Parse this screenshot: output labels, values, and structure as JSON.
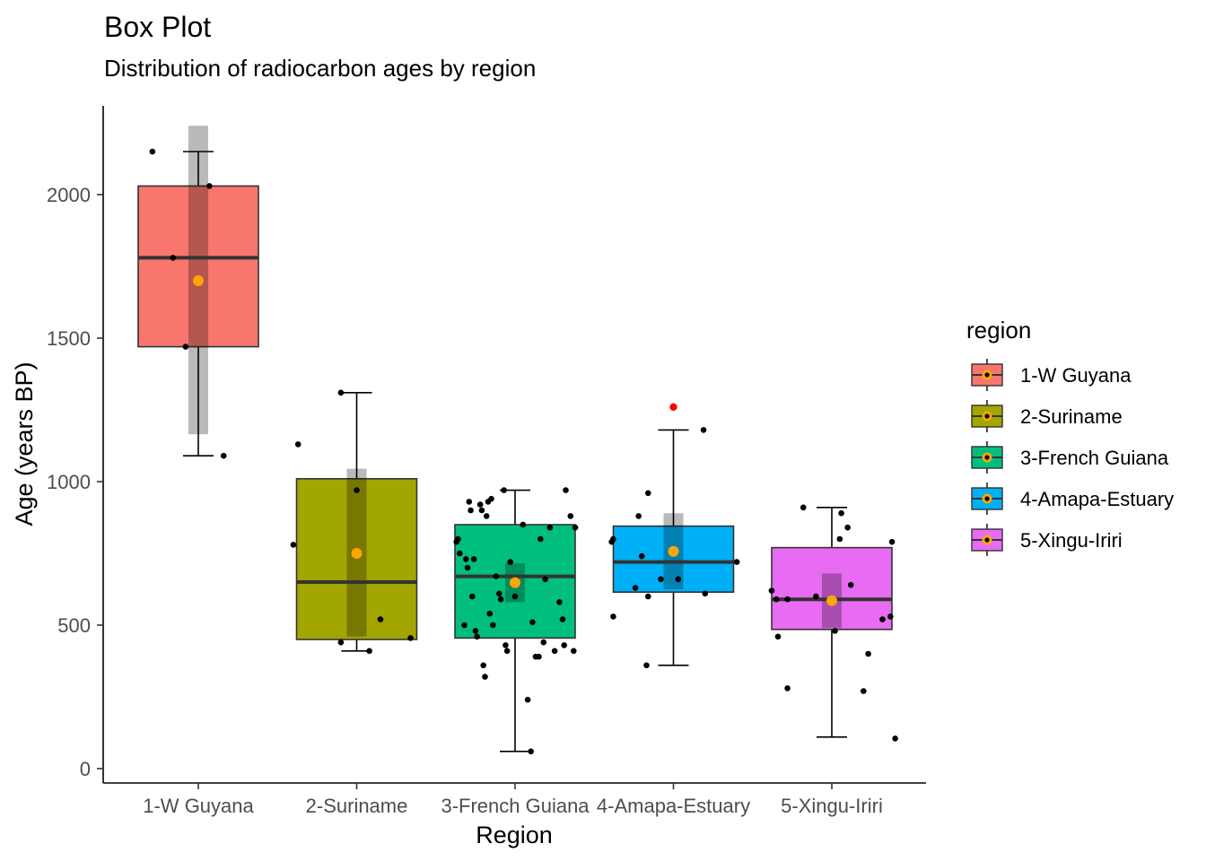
{
  "chart_data": {
    "type": "box",
    "title": "Box Plot",
    "subtitle": "Distribution of radiocarbon ages by region",
    "xlabel": "Region",
    "ylabel": "Age (years BP)",
    "ylim": [
      -50,
      2330
    ],
    "yticks": [
      0,
      500,
      1000,
      1500,
      2000
    ],
    "grid": false,
    "legend": {
      "title": "region",
      "placement": "right"
    },
    "categories": [
      "1-W Guyana",
      "2-Suriname",
      "3-French Guiana",
      "4-Amapa-Estuary",
      "5-Xingu-Iriri"
    ],
    "colors": [
      "#F8766D",
      "#A3A500",
      "#00BF7D",
      "#00B0F6",
      "#E76BF3"
    ],
    "mean_color": "#FFA500",
    "outlier_color": "#FF0000",
    "boxes": [
      {
        "name": "1-W Guyana",
        "whisker_low": 1090,
        "q1": 1470,
        "median": 1780,
        "q3": 2030,
        "whisker_high": 2150,
        "mean": 1700,
        "ci_low": 1165,
        "ci_high": 2240,
        "outliers": []
      },
      {
        "name": "2-Suriname",
        "whisker_low": 410,
        "q1": 450,
        "median": 650,
        "q3": 1010,
        "whisker_high": 1310,
        "mean": 750,
        "ci_low": 460,
        "ci_high": 1045,
        "outliers": []
      },
      {
        "name": "3-French Guiana",
        "whisker_low": 60,
        "q1": 455,
        "median": 670,
        "q3": 850,
        "whisker_high": 970,
        "mean": 648,
        "ci_low": 580,
        "ci_high": 715,
        "outliers": []
      },
      {
        "name": "4-Amapa-Estuary",
        "whisker_low": 360,
        "q1": 615,
        "median": 720,
        "q3": 845,
        "whisker_high": 1180,
        "mean": 757,
        "ci_low": 625,
        "ci_high": 890,
        "outliers": [
          1260
        ]
      },
      {
        "name": "5-Xingu-Iriri",
        "whisker_low": 110,
        "q1": 485,
        "median": 590,
        "q3": 770,
        "whisker_high": 910,
        "mean": 585,
        "ci_low": 490,
        "ci_high": 680,
        "outliers": []
      }
    ],
    "points": [
      {
        "region": "1-W Guyana",
        "jitter": -0.29,
        "y": 2150
      },
      {
        "region": "1-W Guyana",
        "jitter": -0.16,
        "y": 1780
      },
      {
        "region": "1-W Guyana",
        "jitter": -0.08,
        "y": 1470
      },
      {
        "region": "1-W Guyana",
        "jitter": 0.07,
        "y": 2030
      },
      {
        "region": "1-W Guyana",
        "jitter": 0.16,
        "y": 1090
      },
      {
        "region": "2-Suriname",
        "jitter": -0.37,
        "y": 1130
      },
      {
        "region": "2-Suriname",
        "jitter": -0.4,
        "y": 780
      },
      {
        "region": "2-Suriname",
        "jitter": -0.1,
        "y": 440
      },
      {
        "region": "2-Suriname",
        "jitter": -0.1,
        "y": 1310
      },
      {
        "region": "2-Suriname",
        "jitter": 0.0,
        "y": 970
      },
      {
        "region": "2-Suriname",
        "jitter": 0.08,
        "y": 410
      },
      {
        "region": "2-Suriname",
        "jitter": 0.15,
        "y": 520
      },
      {
        "region": "2-Suriname",
        "jitter": 0.34,
        "y": 455
      },
      {
        "region": "3-French Guiana",
        "jitter": -0.37,
        "y": 790
      },
      {
        "region": "3-French Guiana",
        "jitter": -0.36,
        "y": 800
      },
      {
        "region": "3-French Guiana",
        "jitter": -0.35,
        "y": 750
      },
      {
        "region": "3-French Guiana",
        "jitter": -0.32,
        "y": 500
      },
      {
        "region": "3-French Guiana",
        "jitter": -0.31,
        "y": 730
      },
      {
        "region": "3-French Guiana",
        "jitter": -0.3,
        "y": 700
      },
      {
        "region": "3-French Guiana",
        "jitter": -0.29,
        "y": 930
      },
      {
        "region": "3-French Guiana",
        "jitter": -0.28,
        "y": 900
      },
      {
        "region": "3-French Guiana",
        "jitter": -0.27,
        "y": 600
      },
      {
        "region": "3-French Guiana",
        "jitter": -0.26,
        "y": 730
      },
      {
        "region": "3-French Guiana",
        "jitter": -0.25,
        "y": 480
      },
      {
        "region": "3-French Guiana",
        "jitter": -0.24,
        "y": 460
      },
      {
        "region": "3-French Guiana",
        "jitter": -0.22,
        "y": 920
      },
      {
        "region": "3-French Guiana",
        "jitter": -0.21,
        "y": 900
      },
      {
        "region": "3-French Guiana",
        "jitter": -0.2,
        "y": 360
      },
      {
        "region": "3-French Guiana",
        "jitter": -0.19,
        "y": 320
      },
      {
        "region": "3-French Guiana",
        "jitter": -0.18,
        "y": 880
      },
      {
        "region": "3-French Guiana",
        "jitter": -0.17,
        "y": 930
      },
      {
        "region": "3-French Guiana",
        "jitter": -0.16,
        "y": 540
      },
      {
        "region": "3-French Guiana",
        "jitter": -0.15,
        "y": 940
      },
      {
        "region": "3-French Guiana",
        "jitter": -0.14,
        "y": 500
      },
      {
        "region": "3-French Guiana",
        "jitter": -0.12,
        "y": 670
      },
      {
        "region": "3-French Guiana",
        "jitter": -0.1,
        "y": 610
      },
      {
        "region": "3-French Guiana",
        "jitter": -0.09,
        "y": 590
      },
      {
        "region": "3-French Guiana",
        "jitter": -0.07,
        "y": 970
      },
      {
        "region": "3-French Guiana",
        "jitter": -0.06,
        "y": 430
      },
      {
        "region": "3-French Guiana",
        "jitter": -0.05,
        "y": 410
      },
      {
        "region": "3-French Guiana",
        "jitter": -0.03,
        "y": 720
      },
      {
        "region": "3-French Guiana",
        "jitter": 0.0,
        "y": 600
      },
      {
        "region": "3-French Guiana",
        "jitter": 0.05,
        "y": 850
      },
      {
        "region": "3-French Guiana",
        "jitter": 0.08,
        "y": 240
      },
      {
        "region": "3-French Guiana",
        "jitter": 0.1,
        "y": 60
      },
      {
        "region": "3-French Guiana",
        "jitter": 0.11,
        "y": 510
      },
      {
        "region": "3-French Guiana",
        "jitter": 0.13,
        "y": 390
      },
      {
        "region": "3-French Guiana",
        "jitter": 0.15,
        "y": 390
      },
      {
        "region": "3-French Guiana",
        "jitter": 0.16,
        "y": 800
      },
      {
        "region": "3-French Guiana",
        "jitter": 0.18,
        "y": 440
      },
      {
        "region": "3-French Guiana",
        "jitter": 0.19,
        "y": 660
      },
      {
        "region": "3-French Guiana",
        "jitter": 0.22,
        "y": 840
      },
      {
        "region": "3-French Guiana",
        "jitter": 0.25,
        "y": 410
      },
      {
        "region": "3-French Guiana",
        "jitter": 0.28,
        "y": 580
      },
      {
        "region": "3-French Guiana",
        "jitter": 0.3,
        "y": 520
      },
      {
        "region": "3-French Guiana",
        "jitter": 0.31,
        "y": 430
      },
      {
        "region": "3-French Guiana",
        "jitter": 0.32,
        "y": 970
      },
      {
        "region": "3-French Guiana",
        "jitter": 0.35,
        "y": 880
      },
      {
        "region": "3-French Guiana",
        "jitter": 0.37,
        "y": 410
      },
      {
        "region": "3-French Guiana",
        "jitter": 0.38,
        "y": 840
      },
      {
        "region": "4-Amapa-Estuary",
        "jitter": -0.39,
        "y": 790
      },
      {
        "region": "4-Amapa-Estuary",
        "jitter": -0.38,
        "y": 800
      },
      {
        "region": "4-Amapa-Estuary",
        "jitter": -0.38,
        "y": 530
      },
      {
        "region": "4-Amapa-Estuary",
        "jitter": -0.24,
        "y": 630
      },
      {
        "region": "4-Amapa-Estuary",
        "jitter": -0.22,
        "y": 880
      },
      {
        "region": "4-Amapa-Estuary",
        "jitter": -0.2,
        "y": 740
      },
      {
        "region": "4-Amapa-Estuary",
        "jitter": -0.16,
        "y": 600
      },
      {
        "region": "4-Amapa-Estuary",
        "jitter": -0.16,
        "y": 960
      },
      {
        "region": "4-Amapa-Estuary",
        "jitter": -0.17,
        "y": 360
      },
      {
        "region": "4-Amapa-Estuary",
        "jitter": -0.08,
        "y": 660
      },
      {
        "region": "4-Amapa-Estuary",
        "jitter": 0.03,
        "y": 660
      },
      {
        "region": "4-Amapa-Estuary",
        "jitter": 0.2,
        "y": 610
      },
      {
        "region": "4-Amapa-Estuary",
        "jitter": 0.19,
        "y": 1180
      },
      {
        "region": "4-Amapa-Estuary",
        "jitter": 0.4,
        "y": 720
      },
      {
        "region": "5-Xingu-Iriri",
        "jitter": -0.38,
        "y": 620
      },
      {
        "region": "5-Xingu-Iriri",
        "jitter": -0.35,
        "y": 590
      },
      {
        "region": "5-Xingu-Iriri",
        "jitter": -0.34,
        "y": 460
      },
      {
        "region": "5-Xingu-Iriri",
        "jitter": -0.28,
        "y": 590
      },
      {
        "region": "5-Xingu-Iriri",
        "jitter": -0.28,
        "y": 280
      },
      {
        "region": "5-Xingu-Iriri",
        "jitter": -0.18,
        "y": 910
      },
      {
        "region": "5-Xingu-Iriri",
        "jitter": -0.1,
        "y": 600
      },
      {
        "region": "5-Xingu-Iriri",
        "jitter": 0.0,
        "y": 580
      },
      {
        "region": "5-Xingu-Iriri",
        "jitter": 0.02,
        "y": 480
      },
      {
        "region": "5-Xingu-Iriri",
        "jitter": 0.05,
        "y": 800
      },
      {
        "region": "5-Xingu-Iriri",
        "jitter": 0.06,
        "y": 890
      },
      {
        "region": "5-Xingu-Iriri",
        "jitter": 0.12,
        "y": 640
      },
      {
        "region": "5-Xingu-Iriri",
        "jitter": 0.1,
        "y": 840
      },
      {
        "region": "5-Xingu-Iriri",
        "jitter": 0.2,
        "y": 270
      },
      {
        "region": "5-Xingu-Iriri",
        "jitter": 0.23,
        "y": 400
      },
      {
        "region": "5-Xingu-Iriri",
        "jitter": 0.32,
        "y": 520
      },
      {
        "region": "5-Xingu-Iriri",
        "jitter": 0.37,
        "y": 530
      },
      {
        "region": "5-Xingu-Iriri",
        "jitter": 0.38,
        "y": 790
      },
      {
        "region": "5-Xingu-Iriri",
        "jitter": 0.4,
        "y": 105
      }
    ]
  }
}
